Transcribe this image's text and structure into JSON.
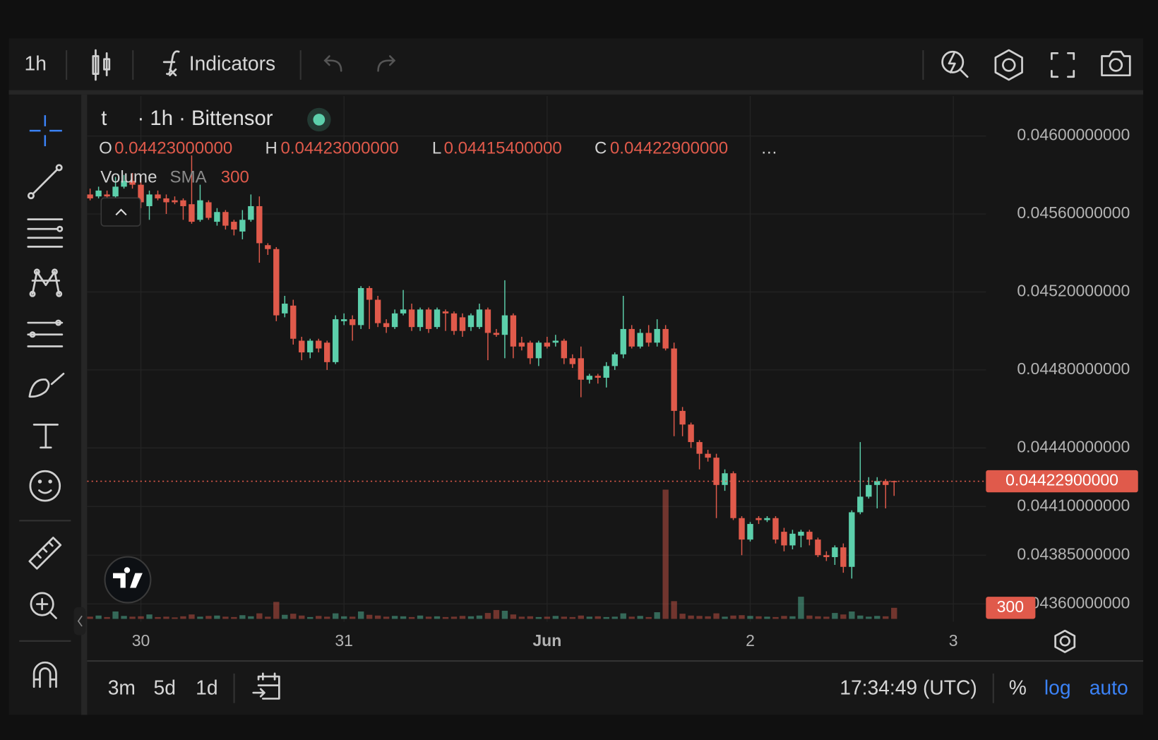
{
  "ui": {
    "toolbar": {
      "timeframe": "1h",
      "indicators": "Indicators"
    },
    "symbol": {
      "ticker": "t",
      "description": "· 1h · Bittensor"
    },
    "legend": {
      "open_label": "O",
      "open": "0.04423000000",
      "high_label": "H",
      "high": "0.04423000000",
      "low_label": "L",
      "low": "0.04415400000",
      "close_label": "C",
      "close": "0.04422900000",
      "more": "…"
    },
    "volume_legend": {
      "name": "Volume",
      "indicator": "SMA",
      "length": "300"
    },
    "bottom": {
      "ranges": [
        "3m",
        "5d",
        "1d"
      ],
      "clock": "17:34:49 (UTC)",
      "percent": "%",
      "log": "log",
      "auto": "auto"
    }
  },
  "chart_data": {
    "type": "candlestick",
    "up_color": "#5ccfab",
    "down_color": "#e05a4b",
    "grid": true,
    "open": [
      0.0457,
      0.04569,
      0.0457,
      0.04569,
      0.04574,
      0.04577,
      0.04575,
      0.04564,
      0.0457,
      0.04568,
      0.04567,
      0.04567,
      0.04565,
      0.04557,
      0.04566,
      0.04556,
      0.04561,
      0.04556,
      0.04551,
      0.04557,
      0.04564,
      0.04544,
      0.04542,
      0.04509,
      0.04513,
      0.04495,
      0.04489,
      0.04495,
      0.04494,
      0.04484,
      0.04505,
      0.04506,
      0.04503,
      0.04522,
      0.04516,
      0.04504,
      0.04502,
      0.04509,
      0.04511,
      0.04502,
      0.04511,
      0.04502,
      0.0451,
      0.04509,
      0.04507,
      0.04502,
      0.04502,
      0.04511,
      0.04499,
      0.04498,
      0.04508,
      0.04494,
      0.04494,
      0.04486,
      0.04494,
      0.04494,
      0.04495,
      0.04486,
      0.04486,
      0.04475,
      0.04477,
      0.04476,
      0.04482,
      0.04488,
      0.04501,
      0.04492,
      0.04499,
      0.04494,
      0.04501,
      0.04491,
      0.04459,
      0.04452,
      0.04443,
      0.04437,
      0.04435,
      0.04421,
      0.04427,
      0.04404,
      0.04393,
      0.04404,
      0.04403,
      0.04404,
      0.04397,
      0.0439,
      0.04395,
      0.04397,
      0.04393,
      0.04385,
      0.04384,
      0.04389,
      0.04379,
      0.04407,
      0.04415,
      0.04421,
      0.04423,
      0.04423
    ],
    "high": [
      0.04573,
      0.04574,
      0.04572,
      0.04579,
      0.0458,
      0.04581,
      0.04579,
      0.04572,
      0.04572,
      0.0457,
      0.04569,
      0.04568,
      0.0459,
      0.04575,
      0.04567,
      0.04563,
      0.04562,
      0.04557,
      0.04562,
      0.0457,
      0.04569,
      0.04545,
      0.04543,
      0.04518,
      0.04516,
      0.04497,
      0.04496,
      0.04496,
      0.04495,
      0.04508,
      0.04509,
      0.04508,
      0.04523,
      0.04523,
      0.04518,
      0.04506,
      0.04511,
      0.04521,
      0.04514,
      0.04512,
      0.04512,
      0.04512,
      0.04511,
      0.0451,
      0.04509,
      0.04509,
      0.04514,
      0.04512,
      0.04501,
      0.04526,
      0.04509,
      0.04497,
      0.04495,
      0.04495,
      0.04497,
      0.04498,
      0.04496,
      0.04488,
      0.04492,
      0.04478,
      0.04478,
      0.04484,
      0.04489,
      0.04518,
      0.04503,
      0.04501,
      0.04503,
      0.04506,
      0.04503,
      0.04494,
      0.04461,
      0.04453,
      0.04444,
      0.04439,
      0.04437,
      0.04429,
      0.04428,
      0.04405,
      0.04402,
      0.04405,
      0.04405,
      0.04405,
      0.04399,
      0.04398,
      0.04398,
      0.04398,
      0.04394,
      0.04387,
      0.0439,
      0.04391,
      0.04408,
      0.04443,
      0.04425,
      0.04425,
      0.04424,
      0.04423
    ],
    "low": [
      0.04567,
      0.04568,
      0.04567,
      0.04568,
      0.04573,
      0.04573,
      0.04563,
      0.04557,
      0.04567,
      0.0456,
      0.04565,
      0.04557,
      0.04555,
      0.04556,
      0.04557,
      0.04554,
      0.04552,
      0.04549,
      0.04547,
      0.04556,
      0.04535,
      0.04539,
      0.04505,
      0.04507,
      0.04493,
      0.04485,
      0.04486,
      0.04489,
      0.0448,
      0.04483,
      0.04503,
      0.04495,
      0.04501,
      0.04501,
      0.04502,
      0.04499,
      0.04501,
      0.04508,
      0.045,
      0.045,
      0.04499,
      0.04501,
      0.045,
      0.04498,
      0.04497,
      0.045,
      0.04501,
      0.04485,
      0.04497,
      0.04486,
      0.04486,
      0.0449,
      0.04483,
      0.04482,
      0.04491,
      0.04492,
      0.04483,
      0.04481,
      0.04466,
      0.04473,
      0.04473,
      0.04471,
      0.0448,
      0.04486,
      0.04491,
      0.04491,
      0.04492,
      0.04492,
      0.0449,
      0.04446,
      0.04446,
      0.0444,
      0.04429,
      0.04433,
      0.04404,
      0.04418,
      0.04403,
      0.04385,
      0.04392,
      0.04401,
      0.04402,
      0.04391,
      0.04387,
      0.04388,
      0.04389,
      0.0439,
      0.04384,
      0.04382,
      0.0438,
      0.04376,
      0.04373,
      0.04406,
      0.04414,
      0.04409,
      0.04409,
      0.044154
    ],
    "close": [
      0.04568,
      0.04572,
      0.04569,
      0.04574,
      0.04577,
      0.04575,
      0.04566,
      0.0457,
      0.04568,
      0.04566,
      0.04566,
      0.04564,
      0.04556,
      0.04567,
      0.04558,
      0.04561,
      0.04554,
      0.04552,
      0.04557,
      0.04564,
      0.04545,
      0.04542,
      0.04508,
      0.04514,
      0.04496,
      0.04489,
      0.04495,
      0.04491,
      0.04484,
      0.04506,
      0.04506,
      0.04503,
      0.04522,
      0.04516,
      0.04504,
      0.04502,
      0.04509,
      0.04511,
      0.04502,
      0.04511,
      0.04501,
      0.04511,
      0.04509,
      0.045,
      0.045,
      0.04508,
      0.04511,
      0.04499,
      0.04498,
      0.04508,
      0.04492,
      0.04492,
      0.04486,
      0.04494,
      0.04492,
      0.04495,
      0.04486,
      0.04483,
      0.04475,
      0.04477,
      0.04476,
      0.04482,
      0.04488,
      0.04501,
      0.04492,
      0.04499,
      0.04494,
      0.04501,
      0.04491,
      0.04459,
      0.04452,
      0.04443,
      0.04437,
      0.04435,
      0.04421,
      0.04427,
      0.04404,
      0.04393,
      0.04401,
      0.04403,
      0.04404,
      0.04393,
      0.0439,
      0.04396,
      0.04397,
      0.04393,
      0.04385,
      0.04384,
      0.04389,
      0.04379,
      0.04407,
      0.04415,
      0.04421,
      0.04423,
      0.04421,
      0.044229
    ],
    "volume": [
      60,
      90,
      50,
      200,
      80,
      60,
      70,
      120,
      50,
      60,
      40,
      70,
      120,
      60,
      80,
      90,
      60,
      50,
      100,
      70,
      150,
      60,
      460,
      110,
      140,
      90,
      50,
      80,
      60,
      150,
      70,
      60,
      200,
      110,
      90,
      60,
      80,
      70,
      50,
      90,
      60,
      70,
      50,
      60,
      80,
      70,
      90,
      160,
      240,
      220,
      120,
      60,
      70,
      50,
      60,
      80,
      60,
      50,
      90,
      60,
      70,
      50,
      60,
      150,
      60,
      80,
      50,
      180,
      3500,
      480,
      140,
      90,
      80,
      70,
      150,
      60,
      90,
      100,
      80,
      70,
      60,
      50,
      80,
      70,
      600,
      90,
      70,
      60,
      160,
      120,
      200,
      90,
      60,
      80,
      70,
      300
    ],
    "last_price": {
      "value": 0.044229,
      "label": "0.04422900000"
    },
    "xlim": [
      -0.35,
      105.85
    ],
    "xticks": [
      {
        "value": 6,
        "label": "30"
      },
      {
        "value": 30,
        "label": "31"
      },
      {
        "value": 54,
        "label": "Jun"
      },
      {
        "value": 78,
        "label": "2"
      },
      {
        "value": 102,
        "label": "3"
      }
    ],
    "ylim": [
      0.043508,
      0.046205
    ],
    "yticks": [
      {
        "value": 0.046,
        "label": "0.04600000000"
      },
      {
        "value": 0.0456,
        "label": "0.04560000000"
      },
      {
        "value": 0.0452,
        "label": "0.04520000000"
      },
      {
        "value": 0.0448,
        "label": "0.04480000000"
      },
      {
        "value": 0.0444,
        "label": "0.04440000000"
      },
      {
        "value": 0.0441,
        "label": "0.04410000000"
      },
      {
        "value": 0.04385,
        "label": "0.04385000000"
      },
      {
        "value": 0.0436,
        "label": "0.04360000000"
      }
    ],
    "vlim": [
      0,
      14160
    ]
  }
}
